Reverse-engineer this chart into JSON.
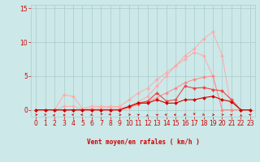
{
  "bg_color": "#cce8e8",
  "grid_color": "#aacccc",
  "xlabel": "Vent moyen/en rafales ( km/h )",
  "xlabel_color": "#cc0000",
  "tick_color": "#cc0000",
  "xlim": [
    -0.5,
    23.5
  ],
  "ylim": [
    -1.0,
    15.5
  ],
  "yticks": [
    0,
    5,
    10,
    15
  ],
  "xticks": [
    0,
    1,
    2,
    3,
    4,
    5,
    6,
    7,
    8,
    9,
    10,
    11,
    12,
    13,
    14,
    15,
    16,
    17,
    18,
    19,
    20,
    21,
    22,
    23
  ],
  "series": [
    {
      "color": "#ffaaaa",
      "lw": 0.7,
      "x": [
        0,
        1,
        2,
        3,
        4,
        5,
        6,
        7,
        8,
        9,
        10,
        11,
        12,
        13,
        14,
        15,
        16,
        17,
        18,
        19,
        20,
        21,
        22,
        23
      ],
      "y": [
        0,
        0,
        0,
        2.2,
        2.0,
        0.2,
        0.5,
        0.5,
        0.5,
        0.5,
        1.5,
        2.5,
        3.2,
        4.5,
        5.5,
        6.5,
        7.5,
        8.5,
        8.0,
        5.0,
        0,
        0,
        0,
        0
      ]
    },
    {
      "color": "#ffaaaa",
      "lw": 0.7,
      "x": [
        0,
        1,
        2,
        3,
        4,
        5,
        6,
        7,
        8,
        9,
        10,
        11,
        12,
        13,
        14,
        15,
        16,
        17,
        18,
        19,
        20,
        21,
        22,
        23
      ],
      "y": [
        0,
        0,
        0,
        0.5,
        0.5,
        0.1,
        0.2,
        0.3,
        0.3,
        0.3,
        0.5,
        1.2,
        2.0,
        3.5,
        5.0,
        6.5,
        8.0,
        9.0,
        10.5,
        11.5,
        8.0,
        0,
        0,
        0
      ]
    },
    {
      "color": "#ff8888",
      "lw": 0.7,
      "x": [
        0,
        1,
        2,
        3,
        4,
        5,
        6,
        7,
        8,
        9,
        10,
        11,
        12,
        13,
        14,
        15,
        16,
        17,
        18,
        19,
        20,
        21,
        22,
        23
      ],
      "y": [
        0,
        0,
        0,
        0,
        0,
        0,
        0,
        0,
        0,
        0,
        0.3,
        0.8,
        1.2,
        1.8,
        2.5,
        3.2,
        4.0,
        4.5,
        4.8,
        5.0,
        0,
        0,
        0,
        0
      ]
    },
    {
      "color": "#ee4444",
      "lw": 0.8,
      "x": [
        0,
        1,
        2,
        3,
        4,
        5,
        6,
        7,
        8,
        9,
        10,
        11,
        12,
        13,
        14,
        15,
        16,
        17,
        18,
        19,
        20,
        21,
        22,
        23
      ],
      "y": [
        0,
        0,
        0,
        0,
        0,
        0,
        0,
        0,
        0,
        0,
        0.5,
        1.0,
        1.3,
        2.5,
        1.3,
        1.5,
        3.5,
        3.2,
        3.3,
        3.0,
        2.8,
        1.5,
        0,
        0
      ]
    },
    {
      "color": "#cc0000",
      "lw": 0.8,
      "x": [
        0,
        1,
        2,
        3,
        4,
        5,
        6,
        7,
        8,
        9,
        10,
        11,
        12,
        13,
        14,
        15,
        16,
        17,
        18,
        19,
        20,
        21,
        22,
        23
      ],
      "y": [
        0,
        0,
        0,
        0,
        0,
        0,
        0,
        0,
        0,
        0,
        0.5,
        1.0,
        1.0,
        1.5,
        1.0,
        1.0,
        1.5,
        1.5,
        1.8,
        2.0,
        1.5,
        1.2,
        0,
        0
      ]
    }
  ],
  "markersize": 2,
  "arrow_color": "#cc0000",
  "arrows_x": [
    0,
    1,
    2,
    3,
    4,
    5,
    6,
    7,
    8,
    9,
    10,
    11,
    12,
    13,
    14,
    15,
    16,
    17,
    18,
    19,
    20,
    21,
    22,
    23
  ]
}
